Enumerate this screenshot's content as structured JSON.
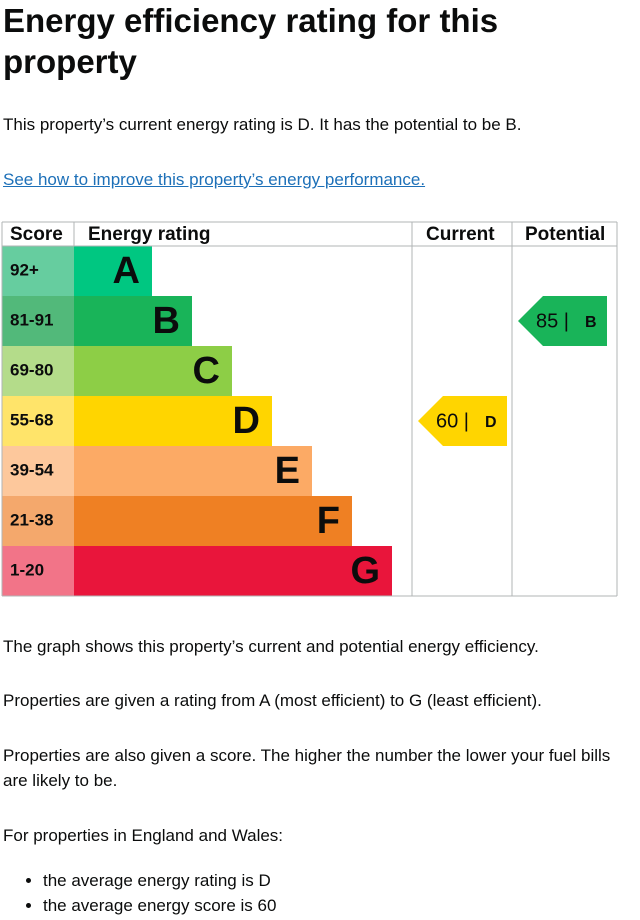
{
  "title": "Energy efficiency rating for this property",
  "summary": "This property’s current energy rating is D. It has the potential to be B.",
  "link": "See how to improve this property’s energy performance.",
  "table": {
    "headers": [
      "Score",
      "Energy rating",
      "Current",
      "Potential"
    ],
    "rows": [
      {
        "score": "92+",
        "band": "A",
        "color": "#00c781",
        "light": "#66cd9f"
      },
      {
        "score": "81-91",
        "band": "B",
        "color": "#19b459",
        "light": "#52b97a"
      },
      {
        "score": "69-80",
        "band": "C",
        "color": "#8dce46",
        "light": "#b4dc8a"
      },
      {
        "score": "55-68",
        "band": "D",
        "color": "#ffd500",
        "light": "#ffe46a"
      },
      {
        "score": "39-54",
        "band": "E",
        "color": "#fcaa65",
        "light": "#fdc89c"
      },
      {
        "score": "21-38",
        "band": "F",
        "color": "#ef8023",
        "light": "#f4a86c"
      },
      {
        "score": "1-20",
        "band": "G",
        "color": "#e9153b",
        "light": "#f27488"
      }
    ],
    "current": {
      "label": "60 |",
      "band": "D"
    },
    "potential": {
      "label": "85 |",
      "band": "B"
    }
  },
  "paragraphs": [
    "The graph shows this property’s current and potential energy efficiency.",
    "Properties are given a rating from A (most efficient) to G (least efficient).",
    "Properties are also given a score. The higher the number the lower your fuel bills are likely to be.",
    "For properties in England and Wales:"
  ],
  "bullets": [
    "the average energy rating is D",
    "the average energy score is 60"
  ]
}
